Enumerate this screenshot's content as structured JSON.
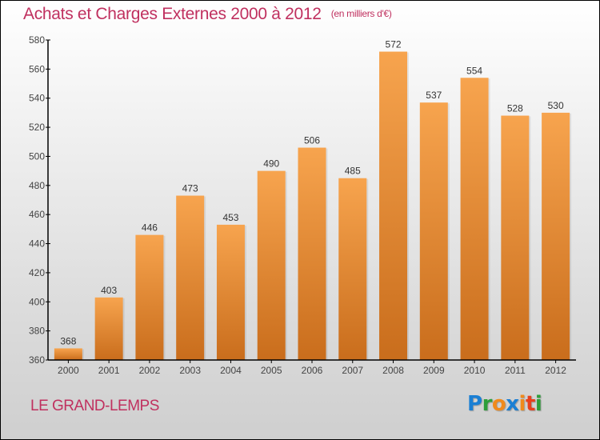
{
  "title": "Achats et Charges Externes 2000 à 2012",
  "subtitle": "(en milliers d'€)",
  "commune": "LE GRAND-LEMPS",
  "logo": {
    "letters": [
      {
        "char": "P",
        "color": "#1a7fd4"
      },
      {
        "char": "r",
        "color": "#2e9e3a"
      },
      {
        "char": "o",
        "color": "#f08a1c"
      },
      {
        "char": "x",
        "color": "#1a7fd4"
      },
      {
        "char": "i",
        "color": "#f08a1c"
      },
      {
        "char": "t",
        "color": "#e8401c"
      },
      {
        "char": "i",
        "color": "#2e9e3a"
      }
    ]
  },
  "colors": {
    "title": "#c0305f",
    "bar_top": "#f7a44e",
    "bar_bottom": "#c96d1c",
    "axis": "#000000"
  },
  "chart_data": {
    "type": "bar",
    "title": "Achats et Charges Externes 2000 à 2012",
    "subtitle": "(en milliers d'€)",
    "xlabel": "",
    "ylabel": "",
    "categories": [
      "2000",
      "2001",
      "2002",
      "2003",
      "2004",
      "2005",
      "2006",
      "2007",
      "2008",
      "2009",
      "2010",
      "2011",
      "2012"
    ],
    "values": [
      368,
      403,
      446,
      473,
      453,
      490,
      506,
      485,
      572,
      537,
      554,
      528,
      530
    ],
    "ylim": [
      360,
      580
    ],
    "yticks": [
      360,
      380,
      400,
      420,
      440,
      460,
      480,
      500,
      520,
      540,
      560,
      580
    ],
    "grid": false,
    "legend": "none",
    "data_labels": true
  }
}
